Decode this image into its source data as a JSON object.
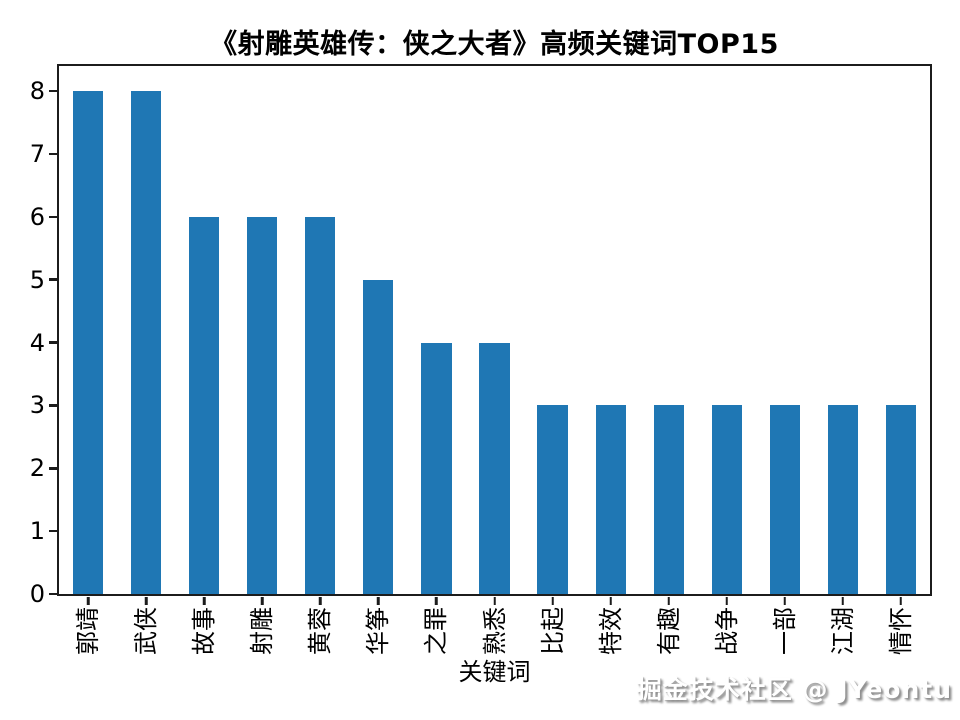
{
  "watermark": "掘金技术社区 @ JYeontu",
  "chart_data": {
    "type": "bar",
    "title": "《射雕英雄传：侠之大者》高频关键词TOP15",
    "categories": [
      "郭靖",
      "武侠",
      "故事",
      "射雕",
      "黄蓉",
      "华筝",
      "之罪",
      "熟悉",
      "比起",
      "特效",
      "有趣",
      "战争",
      "一部",
      "江湖",
      "情怀"
    ],
    "values": [
      8,
      8,
      6,
      6,
      6,
      5,
      4,
      4,
      3,
      3,
      3,
      3,
      3,
      3,
      3
    ],
    "xlabel": "关键词",
    "ylabel": "",
    "ylim": [
      0,
      8.4
    ],
    "yticks": [
      0,
      1,
      2,
      3,
      4,
      5,
      6,
      7,
      8
    ],
    "bar_color": "#1f77b4",
    "spine_color": "#1c1c1c",
    "grid": false,
    "legend": "none",
    "tick_label_rotation": 90
  }
}
